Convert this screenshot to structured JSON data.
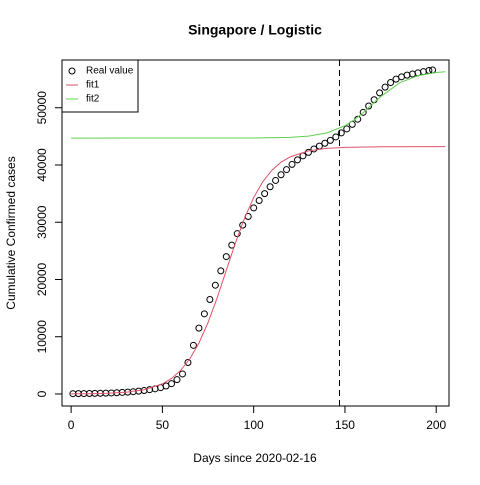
{
  "chart_data": {
    "type": "scatter",
    "title": "Singapore / Logistic",
    "xlabel": "Days since 2020-02-16",
    "ylabel": "Cumulative Confirmed cases",
    "xlim": [
      -5,
      207
    ],
    "ylim": [
      -2100,
      58340
    ],
    "xticks": [
      0,
      50,
      100,
      150,
      200
    ],
    "yticks": [
      0,
      10000,
      20000,
      30000,
      40000,
      50000
    ],
    "vline": 147,
    "legend": "top-left",
    "series": [
      {
        "name": "Real value",
        "type": "scatter",
        "color": "#000000",
        "x": [
          1,
          4,
          7,
          10,
          13,
          16,
          19,
          22,
          25,
          28,
          31,
          34,
          37,
          40,
          43,
          46,
          49,
          52,
          55,
          58,
          61,
          64,
          67,
          70,
          73,
          76,
          79,
          82,
          85,
          88,
          91,
          94,
          97,
          100,
          103,
          106,
          109,
          112,
          115,
          118,
          121,
          124,
          127,
          130,
          133,
          136,
          139,
          142,
          145,
          148,
          151,
          154,
          157,
          160,
          163,
          166,
          169,
          172,
          175,
          178,
          181,
          184,
          187,
          190,
          193,
          196,
          198
        ],
        "values": [
          50,
          60,
          70,
          80,
          100,
          120,
          150,
          180,
          220,
          270,
          330,
          400,
          500,
          600,
          750,
          900,
          1100,
          1400,
          1800,
          2500,
          3500,
          5500,
          8500,
          11500,
          14000,
          16500,
          19000,
          21500,
          24000,
          26000,
          28000,
          29500,
          31000,
          32500,
          33800,
          35000,
          36200,
          37300,
          38300,
          39200,
          40100,
          40900,
          41600,
          42200,
          42800,
          43300,
          43800,
          44300,
          44900,
          45600,
          46300,
          47100,
          48000,
          49200,
          50300,
          51400,
          52600,
          53600,
          54400,
          55000,
          55400,
          55700,
          55900,
          56100,
          56300,
          56500,
          56600
        ]
      },
      {
        "name": "fit1",
        "type": "line",
        "color": "#DF536B",
        "x": [
          0,
          10,
          20,
          30,
          40,
          50,
          55,
          60,
          65,
          70,
          75,
          80,
          85,
          90,
          95,
          100,
          105,
          110,
          115,
          120,
          130,
          140,
          150,
          170,
          205
        ],
        "values": [
          20,
          50,
          124,
          304,
          737,
          1779,
          2710,
          4133,
          6128,
          8889,
          12486,
          16814,
          21600,
          26373,
          30710,
          34313,
          37080,
          39090,
          40490,
          41420,
          42460,
          42900,
          43075,
          43180,
          43200
        ]
      },
      {
        "name": "fit2",
        "type": "line",
        "color": "#61D04F",
        "x": [
          0,
          100,
          120,
          130,
          140,
          150,
          155,
          160,
          170,
          180,
          190,
          200,
          205
        ],
        "values": [
          44700,
          44718,
          44830,
          45046,
          45594,
          46853,
          47874,
          49153,
          52044,
          54349,
          55606,
          56156,
          56290
        ]
      }
    ]
  }
}
